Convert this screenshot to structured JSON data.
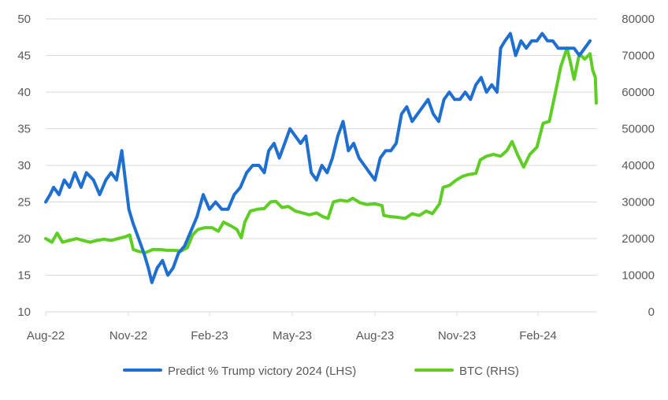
{
  "chart_data": {
    "type": "line",
    "x_tick_labels": [
      "Aug-22",
      "Nov-22",
      "Feb-23",
      "May-23",
      "Aug-23",
      "Nov-23",
      "Feb-24"
    ],
    "y_left_ticks": [
      10,
      15,
      20,
      25,
      30,
      35,
      40,
      45,
      50
    ],
    "y_right_ticks": [
      0,
      10000,
      20000,
      30000,
      40000,
      50000,
      60000,
      70000,
      80000
    ],
    "ylim_left": [
      10,
      50
    ],
    "ylim_right": [
      0,
      80000
    ],
    "xlim": [
      "2022-08-01",
      "2024-04-15"
    ],
    "grid": "horizontal",
    "legend_position": "bottom",
    "series": [
      {
        "name": "Predict % Trump victory 2024 (LHS)",
        "axis": "left",
        "color": "#1f6fd1",
        "points": [
          [
            "2022-08-01",
            25
          ],
          [
            "2022-08-06",
            26
          ],
          [
            "2022-08-10",
            27
          ],
          [
            "2022-08-16",
            26
          ],
          [
            "2022-08-22",
            28
          ],
          [
            "2022-08-28",
            27
          ],
          [
            "2022-09-03",
            29
          ],
          [
            "2022-09-10",
            27
          ],
          [
            "2022-09-16",
            29
          ],
          [
            "2022-09-24",
            28
          ],
          [
            "2022-10-01",
            26
          ],
          [
            "2022-10-08",
            28
          ],
          [
            "2022-10-14",
            29
          ],
          [
            "2022-10-20",
            28
          ],
          [
            "2022-10-26",
            32
          ],
          [
            "2022-10-31",
            27
          ],
          [
            "2022-11-03",
            24
          ],
          [
            "2022-11-08",
            22
          ],
          [
            "2022-11-14",
            20
          ],
          [
            "2022-11-20",
            18
          ],
          [
            "2022-11-25",
            16
          ],
          [
            "2022-11-29",
            14
          ],
          [
            "2022-12-05",
            16
          ],
          [
            "2022-12-11",
            17
          ],
          [
            "2022-12-17",
            15
          ],
          [
            "2022-12-23",
            16
          ],
          [
            "2022-12-29",
            18
          ],
          [
            "2023-01-05",
            19
          ],
          [
            "2023-01-12",
            21
          ],
          [
            "2023-01-19",
            23
          ],
          [
            "2023-01-26",
            26
          ],
          [
            "2023-02-02",
            24
          ],
          [
            "2023-02-09",
            25
          ],
          [
            "2023-02-16",
            24
          ],
          [
            "2023-02-23",
            24
          ],
          [
            "2023-03-02",
            26
          ],
          [
            "2023-03-09",
            27
          ],
          [
            "2023-03-16",
            29
          ],
          [
            "2023-03-23",
            30
          ],
          [
            "2023-03-30",
            30
          ],
          [
            "2023-04-05",
            29
          ],
          [
            "2023-04-10",
            32
          ],
          [
            "2023-04-16",
            33
          ],
          [
            "2023-04-22",
            31
          ],
          [
            "2023-04-28",
            33
          ],
          [
            "2023-05-04",
            35
          ],
          [
            "2023-05-10",
            34
          ],
          [
            "2023-05-16",
            33
          ],
          [
            "2023-05-22",
            34
          ],
          [
            "2023-05-28",
            29
          ],
          [
            "2023-06-03",
            28
          ],
          [
            "2023-06-09",
            30
          ],
          [
            "2023-06-15",
            29
          ],
          [
            "2023-06-21",
            31
          ],
          [
            "2023-06-27",
            34
          ],
          [
            "2023-07-03",
            36
          ],
          [
            "2023-07-09",
            32
          ],
          [
            "2023-07-15",
            33
          ],
          [
            "2023-07-21",
            31
          ],
          [
            "2023-07-27",
            30
          ],
          [
            "2023-08-02",
            29
          ],
          [
            "2023-08-08",
            28
          ],
          [
            "2023-08-14",
            31
          ],
          [
            "2023-08-20",
            32
          ],
          [
            "2023-08-26",
            32
          ],
          [
            "2023-09-01",
            33
          ],
          [
            "2023-09-07",
            37
          ],
          [
            "2023-09-13",
            38
          ],
          [
            "2023-09-19",
            36
          ],
          [
            "2023-09-25",
            37
          ],
          [
            "2023-10-01",
            38
          ],
          [
            "2023-10-07",
            39
          ],
          [
            "2023-10-13",
            37
          ],
          [
            "2023-10-19",
            36
          ],
          [
            "2023-10-25",
            39
          ],
          [
            "2023-10-31",
            40
          ],
          [
            "2023-11-06",
            39
          ],
          [
            "2023-11-12",
            39
          ],
          [
            "2023-11-18",
            40
          ],
          [
            "2023-11-24",
            39
          ],
          [
            "2023-11-30",
            41
          ],
          [
            "2023-12-06",
            42
          ],
          [
            "2023-12-12",
            40
          ],
          [
            "2023-12-18",
            41
          ],
          [
            "2023-12-24",
            40
          ],
          [
            "2023-12-28",
            46
          ],
          [
            "2024-01-02",
            47
          ],
          [
            "2024-01-08",
            48
          ],
          [
            "2024-01-14",
            45
          ],
          [
            "2024-01-20",
            47
          ],
          [
            "2024-01-26",
            46
          ],
          [
            "2024-02-01",
            47
          ],
          [
            "2024-02-07",
            47
          ],
          [
            "2024-02-13",
            48
          ],
          [
            "2024-02-19",
            47
          ],
          [
            "2024-02-25",
            47
          ],
          [
            "2024-03-02",
            46
          ],
          [
            "2024-03-08",
            46
          ],
          [
            "2024-03-14",
            46
          ],
          [
            "2024-03-20",
            46
          ],
          [
            "2024-03-26",
            45
          ],
          [
            "2024-04-01",
            46
          ],
          [
            "2024-04-07",
            47
          ]
        ]
      },
      {
        "name": "BTC (RHS)",
        "axis": "right",
        "color": "#5fce24",
        "points": [
          [
            "2022-08-01",
            20000
          ],
          [
            "2022-08-08",
            19000
          ],
          [
            "2022-08-14",
            21500
          ],
          [
            "2022-08-20",
            19000
          ],
          [
            "2022-08-28",
            19500
          ],
          [
            "2022-09-05",
            20000
          ],
          [
            "2022-09-12",
            19500
          ],
          [
            "2022-09-20",
            19000
          ],
          [
            "2022-09-28",
            19500
          ],
          [
            "2022-10-06",
            19800
          ],
          [
            "2022-10-14",
            19500
          ],
          [
            "2022-10-22",
            20000
          ],
          [
            "2022-10-30",
            20500
          ],
          [
            "2022-11-04",
            21000
          ],
          [
            "2022-11-08",
            17000
          ],
          [
            "2022-11-14",
            16500
          ],
          [
            "2022-11-22",
            16200
          ],
          [
            "2022-11-30",
            17000
          ],
          [
            "2022-12-08",
            17000
          ],
          [
            "2022-12-16",
            16800
          ],
          [
            "2022-12-24",
            16800
          ],
          [
            "2023-01-01",
            16600
          ],
          [
            "2023-01-08",
            17500
          ],
          [
            "2023-01-14",
            21000
          ],
          [
            "2023-01-20",
            22500
          ],
          [
            "2023-01-28",
            23000
          ],
          [
            "2023-02-05",
            23000
          ],
          [
            "2023-02-12",
            22000
          ],
          [
            "2023-02-18",
            24500
          ],
          [
            "2023-02-26",
            23500
          ],
          [
            "2023-03-05",
            22500
          ],
          [
            "2023-03-10",
            20200
          ],
          [
            "2023-03-14",
            24500
          ],
          [
            "2023-03-20",
            27500
          ],
          [
            "2023-03-28",
            28000
          ],
          [
            "2023-04-05",
            28200
          ],
          [
            "2023-04-12",
            30000
          ],
          [
            "2023-04-18",
            30200
          ],
          [
            "2023-04-25",
            28500
          ],
          [
            "2023-05-02",
            28800
          ],
          [
            "2023-05-10",
            27500
          ],
          [
            "2023-05-18",
            27000
          ],
          [
            "2023-05-26",
            26500
          ],
          [
            "2023-06-03",
            27000
          ],
          [
            "2023-06-10",
            26000
          ],
          [
            "2023-06-16",
            25500
          ],
          [
            "2023-06-22",
            30000
          ],
          [
            "2023-06-30",
            30500
          ],
          [
            "2023-07-08",
            30200
          ],
          [
            "2023-07-14",
            31000
          ],
          [
            "2023-07-22",
            29800
          ],
          [
            "2023-07-30",
            29300
          ],
          [
            "2023-08-08",
            29500
          ],
          [
            "2023-08-16",
            29000
          ],
          [
            "2023-08-18",
            26300
          ],
          [
            "2023-08-26",
            26000
          ],
          [
            "2023-09-03",
            25800
          ],
          [
            "2023-09-11",
            25500
          ],
          [
            "2023-09-19",
            26800
          ],
          [
            "2023-09-27",
            26300
          ],
          [
            "2023-10-05",
            27500
          ],
          [
            "2023-10-12",
            26800
          ],
          [
            "2023-10-20",
            29500
          ],
          [
            "2023-10-24",
            34000
          ],
          [
            "2023-10-31",
            34500
          ],
          [
            "2023-11-08",
            36000
          ],
          [
            "2023-11-15",
            37000
          ],
          [
            "2023-11-22",
            37500
          ],
          [
            "2023-11-30",
            37800
          ],
          [
            "2023-12-05",
            41500
          ],
          [
            "2023-12-12",
            42500
          ],
          [
            "2023-12-20",
            43000
          ],
          [
            "2023-12-28",
            42500
          ],
          [
            "2024-01-04",
            44000
          ],
          [
            "2024-01-10",
            46500
          ],
          [
            "2024-01-16",
            43000
          ],
          [
            "2024-01-23",
            39500
          ],
          [
            "2024-01-30",
            43000
          ],
          [
            "2024-02-07",
            45000
          ],
          [
            "2024-02-14",
            51500
          ],
          [
            "2024-02-21",
            52000
          ],
          [
            "2024-02-28",
            60000
          ],
          [
            "2024-03-05",
            67000
          ],
          [
            "2024-03-12",
            72000
          ],
          [
            "2024-03-16",
            68000
          ],
          [
            "2024-03-20",
            63500
          ],
          [
            "2024-03-26",
            70500
          ],
          [
            "2024-04-01",
            69000
          ],
          [
            "2024-04-07",
            70500
          ],
          [
            "2024-04-10",
            66000
          ],
          [
            "2024-04-13",
            64000
          ],
          [
            "2024-04-14",
            57000
          ]
        ]
      }
    ]
  }
}
